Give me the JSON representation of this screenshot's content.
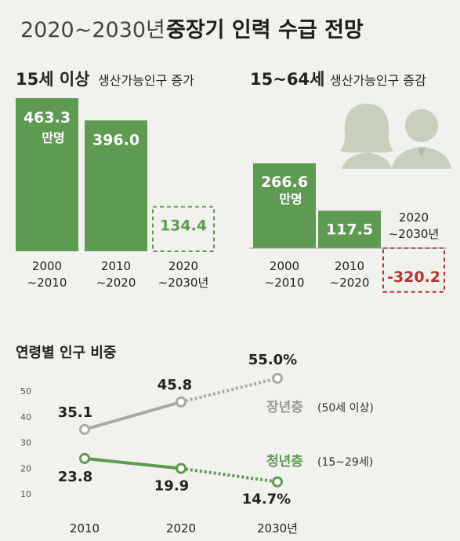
{
  "title": {
    "years": "2020~2030년",
    "main": "중장기 인력 수급 전망"
  },
  "colors": {
    "green": "#5f9a52",
    "gray": "#a9a9a9",
    "red": "#b8322c",
    "text": "#222222",
    "background": "#f1f1ee",
    "silhouette": "#c9cfbf"
  },
  "icons": [
    "person-female-icon",
    "person-male-icon"
  ],
  "chart_data": [
    {
      "type": "bar",
      "title": "15세 이상",
      "subtitle": "생산가능인구 증가",
      "categories": [
        "2000\n~2010",
        "2010\n~2020",
        "2020\n~2030년"
      ],
      "values": [
        463.3,
        396.0,
        134.4
      ],
      "value_labels": [
        "463.3",
        "396.0",
        "134.4"
      ],
      "unit": "만명",
      "projected": [
        false,
        false,
        true
      ]
    },
    {
      "type": "bar",
      "title": "15~64세",
      "subtitle": "생산가능인구 증감",
      "categories": [
        "2000\n~2010",
        "2010\n~2020",
        "2020\n~2030년"
      ],
      "values": [
        266.6,
        117.5,
        -320.2
      ],
      "value_labels": [
        "266.6",
        "117.5",
        "-320.2"
      ],
      "unit": "만명",
      "projected": [
        false,
        false,
        true
      ]
    },
    {
      "type": "line",
      "title": "연령별 인구 비중",
      "categories": [
        "2010",
        "2020",
        "2030년"
      ],
      "y_ticks": [
        10,
        20,
        30,
        40,
        50
      ],
      "ylim": [
        10,
        55
      ],
      "series": [
        {
          "name": "장년층",
          "note": "(50세 이상)",
          "values": [
            35.1,
            45.8,
            55.0
          ],
          "labels": [
            "35.1",
            "45.8",
            "55.0%"
          ],
          "projected_from": 1
        },
        {
          "name": "청년층",
          "note": "(15~29세)",
          "values": [
            23.8,
            19.9,
            14.7
          ],
          "labels": [
            "23.8",
            "19.9",
            "14.7%"
          ],
          "projected_from": 1
        }
      ]
    }
  ]
}
